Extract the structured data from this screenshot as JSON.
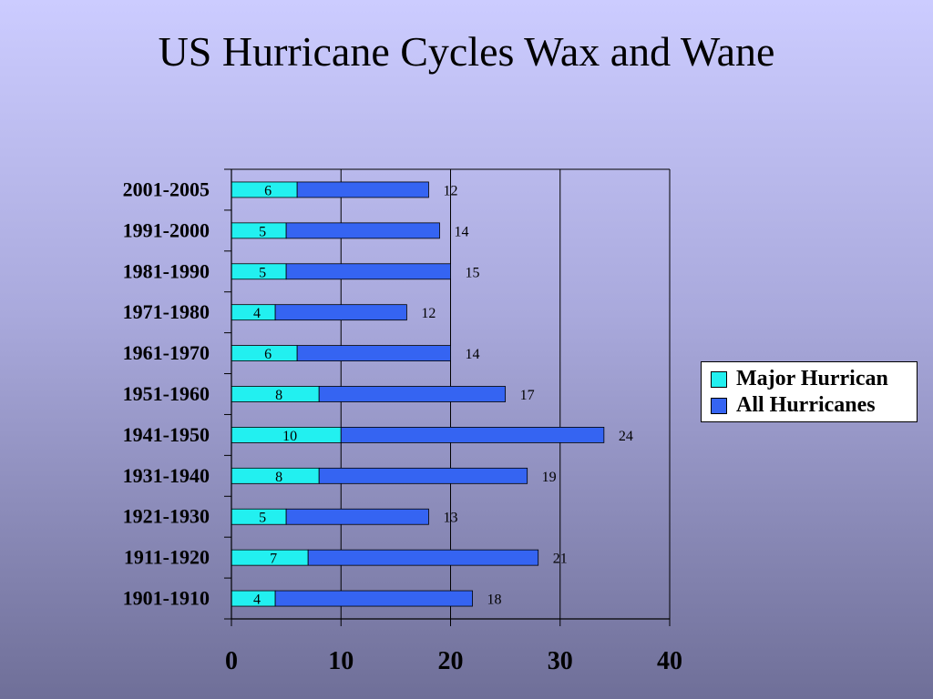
{
  "slide": {
    "title": "US Hurricane Cycles Wax and Wane"
  },
  "colors": {
    "major": "#22f0f0",
    "all": "#3564f2",
    "axis": "#000000"
  },
  "legend": {
    "placement": "right",
    "items": [
      {
        "label": "Major Hurrican",
        "color": "#22f0f0"
      },
      {
        "label": "All Hurricanes",
        "color": "#3564f2"
      }
    ]
  },
  "chart_data": {
    "type": "bar",
    "orientation": "horizontal",
    "stacked": true,
    "categories": [
      "2001-2005",
      "1991-2000",
      "1981-1990",
      "1971-1980",
      "1961-1970",
      "1951-1960",
      "1941-1950",
      "1931-1940",
      "1921-1930",
      "1911-1920",
      "1901-1910"
    ],
    "series": [
      {
        "name": "Major Hurrican",
        "values": [
          6,
          5,
          5,
          4,
          6,
          8,
          10,
          8,
          5,
          7,
          4
        ]
      },
      {
        "name": "All Hurricanes",
        "values": [
          12,
          14,
          15,
          12,
          14,
          17,
          24,
          19,
          13,
          21,
          18
        ]
      }
    ],
    "xlim": [
      0,
      40
    ],
    "xticks": [
      0,
      10,
      20,
      30,
      40
    ],
    "grid": true,
    "xlabel": "",
    "ylabel": ""
  }
}
